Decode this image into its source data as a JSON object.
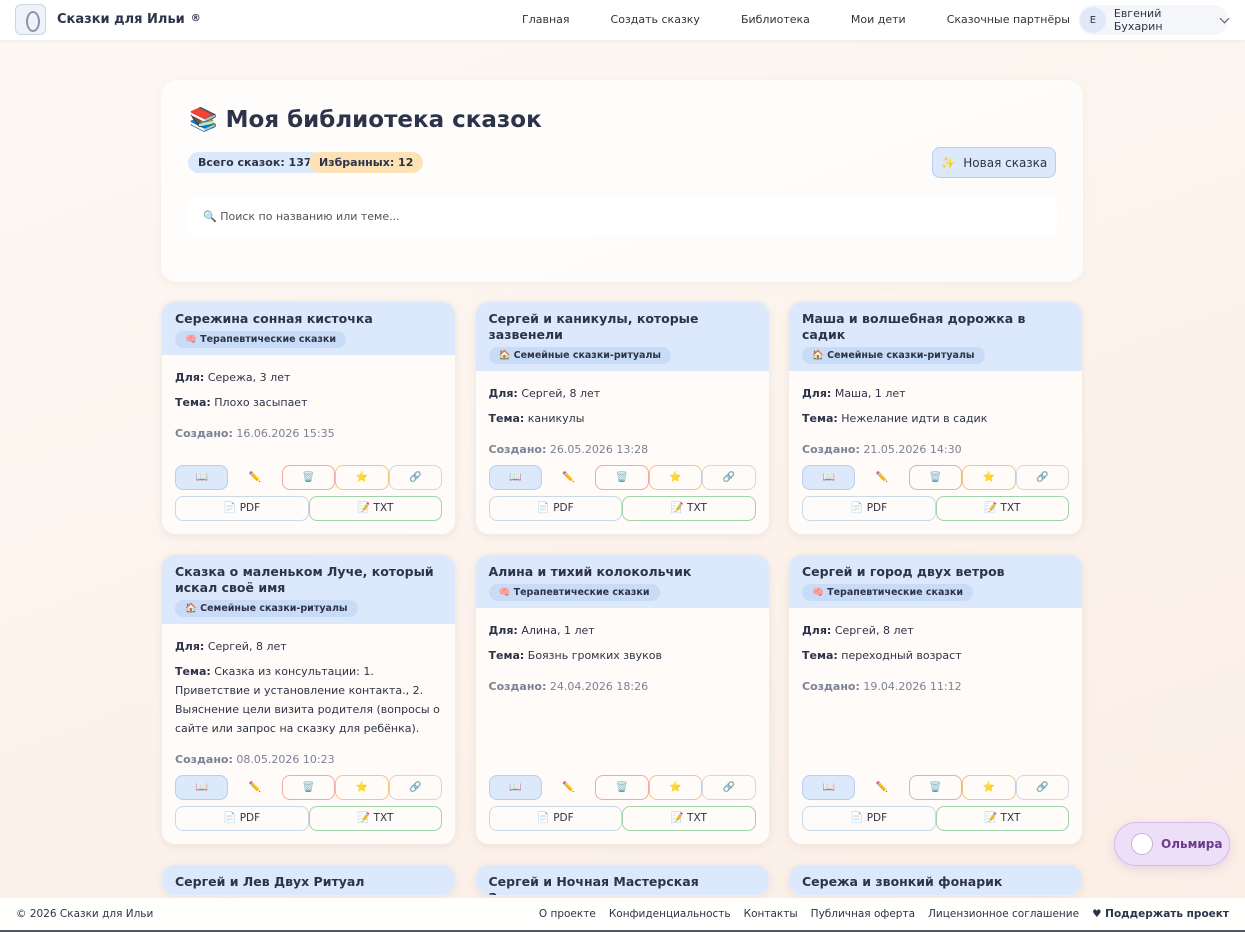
{
  "header": {
    "brand": "Сказки для Ильи",
    "brand_mark": "®",
    "nav": [
      "Главная",
      "Создать сказку",
      "Библиотека",
      "Мои дети",
      "Сказочные партнёры"
    ],
    "user_initial": "Е",
    "user_name": "Евгений Бухарин"
  },
  "library": {
    "icon": "📚",
    "title": "Моя библиотека сказок",
    "total": "Всего сказок: 137",
    "favorites": "Избранных: 12",
    "new_button": "✨  Новая сказка",
    "search_placeholder": "🔍 Поиск по названию или теме..."
  },
  "labels": {
    "for": "Для:",
    "theme": "Тема:",
    "created": "Создано:"
  },
  "actions": {
    "read": "📖",
    "edit": "✏️",
    "delete": "🗑️",
    "favorite": "⭐",
    "link": "🔗",
    "pdf": "📄 PDF",
    "txt": "📝 TXT"
  },
  "stories": [
    {
      "title": "Сережина сонная кисточка",
      "tag": "🧠 Терапевтические сказки",
      "for": "Сережа, 3 лет",
      "theme": "Плохо засыпает",
      "created": "16.06.2026 15:35"
    },
    {
      "title": "Сергей и каникулы, которые зазвенели",
      "tag": "🏠 Семейные сказки-ритуалы",
      "for": "Сергей, 8 лет",
      "theme": "каникулы",
      "created": "26.05.2026 13:28"
    },
    {
      "title": "Маша и волшебная дорожка в садик",
      "tag": "🏠 Семейные сказки-ритуалы",
      "for": "Маша, 1 лет",
      "theme": "Нежелание идти в садик",
      "created": "21.05.2026 14:30"
    },
    {
      "title": "Сказка о маленьком Луче, который искал своё имя",
      "tag": "🏠 Семейные сказки-ритуалы",
      "for": "Сергей, 8 лет",
      "theme": "Сказка из консультации: 1. Приветствие и установление контакта., 2. Выяснение цели визита родителя (вопросы о сайте или запрос на сказку для ребёнка).",
      "created": "08.05.2026 10:23"
    },
    {
      "title": "Алина и тихий колокольчик",
      "tag": "🧠 Терапевтические сказки",
      "for": "Алина, 1 лет",
      "theme": "Боязнь громких звуков",
      "created": "24.04.2026 18:26"
    },
    {
      "title": "Сергей и город двух ветров",
      "tag": "🧠 Терапевтические сказки",
      "for": "Сергей, 8 лет",
      "theme": "переходный возраст",
      "created": "19.04.2026 11:12"
    }
  ],
  "stories_partial": [
    "Сергей и Лев Двух Ритуал",
    "Сергей и Ночная Мастерская Затерянного",
    "Сережа и звонкий фонарик"
  ],
  "assistant": {
    "name": "Ольмира"
  },
  "footer": {
    "copyright": "© 2026 Сказки для Ильи",
    "links": [
      "О проекте",
      "Конфиденциальность",
      "Контакты",
      "Публичная оферта",
      "Лицензионное соглашение"
    ],
    "support": "♥ Поддержать проект"
  }
}
